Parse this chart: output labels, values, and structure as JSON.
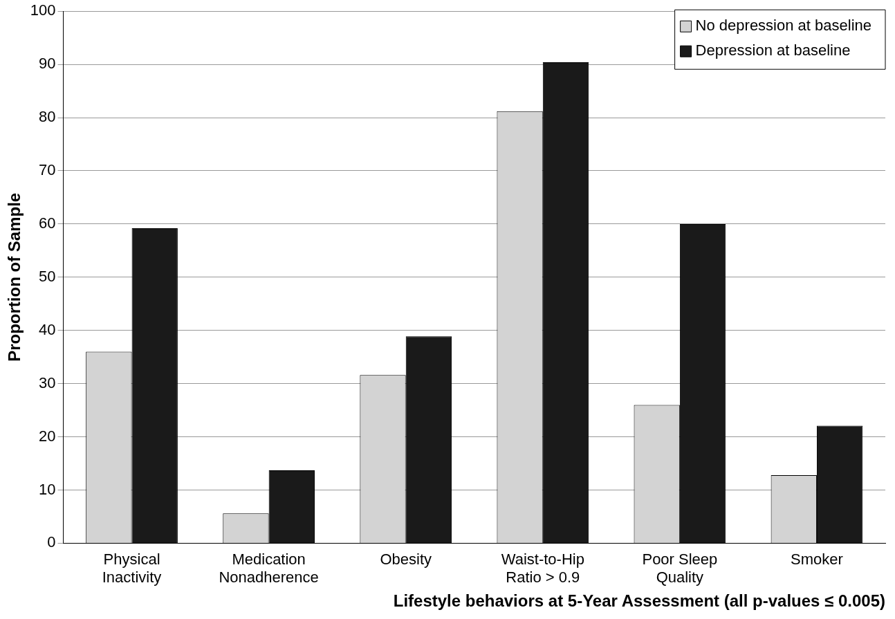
{
  "chart_data": {
    "type": "bar",
    "xlabel": "Lifestyle behaviors at 5-Year Assessment (all p-values ≤ 0.005)",
    "ylabel": "Proportion of Sample",
    "categories": [
      "Physical\nInactivity",
      "Medication\nNonadherence",
      "Obesity",
      "Waist-to-Hip\nRatio > 0.9",
      "Poor Sleep\nQuality",
      "Smoker"
    ],
    "series": [
      {
        "name": "No depression at baseline",
        "color": "#d3d3d3",
        "values": [
          36,
          5.6,
          31.6,
          81.2,
          26,
          12.8
        ]
      },
      {
        "name": "Depression at baseline",
        "color": "#1a1a1a",
        "values": [
          59.2,
          13.7,
          38.9,
          90.4,
          60,
          22.1
        ]
      }
    ],
    "ylim": [
      0,
      100
    ],
    "yticks": [
      0,
      10,
      20,
      30,
      40,
      50,
      60,
      70,
      80,
      90,
      100
    ],
    "grid": "y",
    "legend": "top right"
  }
}
